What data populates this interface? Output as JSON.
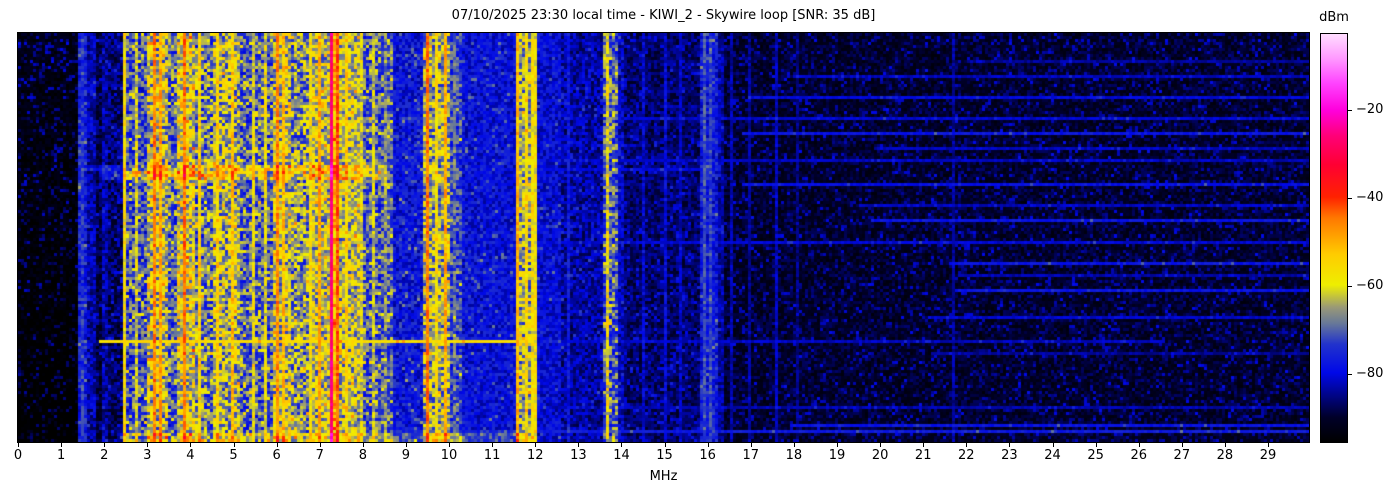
{
  "header": {
    "title": "07/10/2025 23:30 local time - KIWI_2 - Skywire loop [SNR: 35 dB]"
  },
  "chart_data": {
    "type": "heatmap",
    "title": "07/10/2025 23:30 local time - KIWI_2 - Skywire loop [SNR: 35 dB]",
    "xlabel": "MHz",
    "ylabel": "",
    "x_range": [
      0,
      29.95
    ],
    "x_ticks": [
      0,
      1,
      2,
      3,
      4,
      5,
      6,
      7,
      8,
      9,
      10,
      11,
      12,
      13,
      14,
      15,
      16,
      17,
      18,
      19,
      20,
      21,
      22,
      23,
      24,
      25,
      26,
      27,
      28,
      29
    ],
    "grid": false,
    "legend": "colorbar-right",
    "colorbar": {
      "label": "dBm",
      "vmin": -95.5,
      "vmax": -2.7,
      "ticks": [
        {
          "value": -20,
          "label": "−20"
        },
        {
          "value": -40,
          "label": "−40"
        },
        {
          "value": -60,
          "label": "−60"
        },
        {
          "value": -80,
          "label": "−80"
        }
      ],
      "stops": [
        [
          0.0,
          "#000000"
        ],
        [
          0.06,
          "#000028"
        ],
        [
          0.17,
          "#0008e8"
        ],
        [
          0.24,
          "#2233cc"
        ],
        [
          0.29,
          "#667799"
        ],
        [
          0.33,
          "#999977"
        ],
        [
          0.385,
          "#eeee00"
        ],
        [
          0.46,
          "#ffcc00"
        ],
        [
          0.55,
          "#ff7700"
        ],
        [
          0.6,
          "#ff2200"
        ],
        [
          0.68,
          "#ff0033"
        ],
        [
          0.75,
          "#ff0077"
        ],
        [
          0.814,
          "#ff00dd"
        ],
        [
          0.88,
          "#ff44ff"
        ],
        [
          0.94,
          "#ff99ff"
        ],
        [
          1.0,
          "#ffddff"
        ]
      ]
    },
    "bands": [
      [
        0.0,
        1.42,
        -92.5,
        2.5,
        0.3,
        12,
        -5
      ],
      [
        1.42,
        1.6,
        -77,
        6,
        0.15,
        8,
        0
      ],
      [
        1.6,
        1.78,
        -83,
        5,
        0.2,
        7,
        0
      ],
      [
        1.78,
        1.98,
        -88,
        4,
        0.25,
        8,
        -2
      ],
      [
        1.98,
        2.1,
        -84,
        5,
        0.2,
        7,
        0
      ],
      [
        2.1,
        2.45,
        -86.5,
        5,
        0.3,
        9,
        -2
      ],
      [
        2.45,
        3.02,
        -73,
        10,
        0.3,
        11,
        0
      ],
      [
        3.02,
        3.5,
        -63,
        11,
        0.25,
        9,
        0
      ],
      [
        3.5,
        3.72,
        -71,
        10,
        0.2,
        9,
        0
      ],
      [
        3.72,
        4.1,
        -61,
        11,
        0.25,
        9,
        0
      ],
      [
        4.1,
        4.55,
        -69,
        11,
        0.2,
        10,
        0
      ],
      [
        4.55,
        5.15,
        -64,
        11,
        0.2,
        9,
        0
      ],
      [
        5.15,
        5.92,
        -71,
        10,
        0.25,
        11,
        0
      ],
      [
        5.92,
        6.35,
        -62,
        11,
        0.2,
        9,
        0
      ],
      [
        6.35,
        6.85,
        -67,
        11,
        0.2,
        10,
        0
      ],
      [
        6.85,
        7.22,
        -63,
        10,
        0.2,
        9,
        0
      ],
      [
        7.22,
        7.48,
        -52,
        9,
        0.15,
        8,
        0
      ],
      [
        7.48,
        7.95,
        -63,
        10,
        0.2,
        9,
        0
      ],
      [
        7.95,
        8.4,
        -71,
        10,
        0.2,
        11,
        0
      ],
      [
        8.4,
        8.7,
        -70,
        9,
        0.15,
        8,
        0
      ],
      [
        8.7,
        9.4,
        -78.5,
        6,
        0.2,
        9,
        0
      ],
      [
        9.4,
        10.0,
        -65,
        10,
        0.2,
        9,
        0
      ],
      [
        10.0,
        10.3,
        -73,
        8,
        0.15,
        8,
        0
      ],
      [
        10.3,
        11.55,
        -79.5,
        5,
        0.25,
        8,
        0
      ],
      [
        11.55,
        12.08,
        -65,
        10,
        0.2,
        9,
        0
      ],
      [
        12.08,
        12.6,
        -80,
        5,
        0.2,
        7,
        0
      ],
      [
        12.6,
        13.55,
        -84,
        5,
        0.25,
        8,
        0
      ],
      [
        13.55,
        13.9,
        -71,
        10,
        0.2,
        9,
        0
      ],
      [
        13.9,
        14.1,
        -82,
        5,
        0.2,
        7,
        0
      ],
      [
        14.1,
        15.8,
        -87,
        4,
        0.25,
        9,
        0
      ],
      [
        15.8,
        16.2,
        -77.5,
        6,
        0.15,
        7,
        0
      ],
      [
        16.2,
        16.4,
        -84,
        4,
        0.2,
        7,
        0
      ],
      [
        16.4,
        29.95,
        -90.5,
        3.5,
        0.28,
        9,
        0
      ]
    ],
    "stripes": [
      [
        1.5,
        -74,
        5
      ],
      [
        2.5,
        -57,
        6
      ],
      [
        2.78,
        -62,
        7
      ],
      [
        3.2,
        -46,
        5
      ],
      [
        3.33,
        -49,
        5
      ],
      [
        3.9,
        -45,
        5
      ],
      [
        4.2,
        -55,
        7
      ],
      [
        4.65,
        -55,
        6
      ],
      [
        5.0,
        -53,
        6
      ],
      [
        5.5,
        -60,
        7
      ],
      [
        5.75,
        -60,
        7
      ],
      [
        6.0,
        -47,
        5
      ],
      [
        6.17,
        -52,
        6
      ],
      [
        6.8,
        -58,
        6
      ],
      [
        7.0,
        -49,
        5
      ],
      [
        7.3,
        -26,
        3
      ],
      [
        7.42,
        -43,
        4
      ],
      [
        7.6,
        -55,
        6
      ],
      [
        8.0,
        -61,
        7
      ],
      [
        8.25,
        -63,
        7
      ],
      [
        8.55,
        -68,
        6
      ],
      [
        9.5,
        -45,
        4
      ],
      [
        9.75,
        -57,
        6
      ],
      [
        9.93,
        -50,
        5
      ],
      [
        10.1,
        -70,
        6
      ],
      [
        11.63,
        -51,
        5
      ],
      [
        11.8,
        -57,
        6
      ],
      [
        11.98,
        -58,
        6
      ],
      [
        12.8,
        -78,
        4
      ],
      [
        13.7,
        -59,
        8
      ],
      [
        14.5,
        -81,
        4
      ],
      [
        15.0,
        -80,
        4
      ],
      [
        15.35,
        -82,
        3
      ],
      [
        15.9,
        -72,
        4
      ],
      [
        16.05,
        -73,
        4
      ],
      [
        16.55,
        -83,
        3
      ],
      [
        16.95,
        -84,
        3
      ],
      [
        17.6,
        -82,
        3
      ],
      [
        18.1,
        -85,
        3
      ],
      [
        21.7,
        -84,
        3
      ]
    ],
    "h_lines": [
      [
        0.07,
        22.0,
        29.95,
        -84
      ],
      [
        0.105,
        18.0,
        29.95,
        -82
      ],
      [
        0.159,
        16.9,
        29.95,
        -80
      ],
      [
        0.208,
        13.9,
        29.95,
        -81
      ],
      [
        0.245,
        16.8,
        29.95,
        -78
      ],
      [
        0.279,
        20.0,
        29.95,
        -82
      ],
      [
        0.311,
        8.7,
        29.95,
        -82
      ],
      [
        0.335,
        1.45,
        16.3,
        -80
      ],
      [
        0.372,
        16.8,
        29.95,
        -79
      ],
      [
        0.421,
        19.5,
        29.95,
        -82
      ],
      [
        0.462,
        19.8,
        29.95,
        -78
      ],
      [
        0.513,
        8.8,
        29.95,
        -81
      ],
      [
        0.562,
        21.6,
        29.95,
        -78
      ],
      [
        0.592,
        21.8,
        29.95,
        -83
      ],
      [
        0.633,
        21.7,
        29.95,
        -78
      ],
      [
        0.697,
        21.2,
        29.95,
        -81
      ],
      [
        0.753,
        1.85,
        11.9,
        -56
      ],
      [
        0.753,
        11.9,
        26.6,
        -82
      ],
      [
        0.787,
        21.2,
        29.95,
        -84
      ],
      [
        0.919,
        13.5,
        29.95,
        -83
      ],
      [
        0.963,
        17.9,
        29.95,
        -78
      ],
      [
        0.978,
        8.0,
        29.95,
        -77
      ]
    ],
    "h_bands": [
      [
        0.325,
        0.362,
        1.9,
        8.6,
        8
      ],
      [
        0.338,
        0.352,
        2.6,
        4.5,
        5
      ],
      [
        0.985,
        1.0,
        2.4,
        12.0,
        7
      ]
    ]
  }
}
